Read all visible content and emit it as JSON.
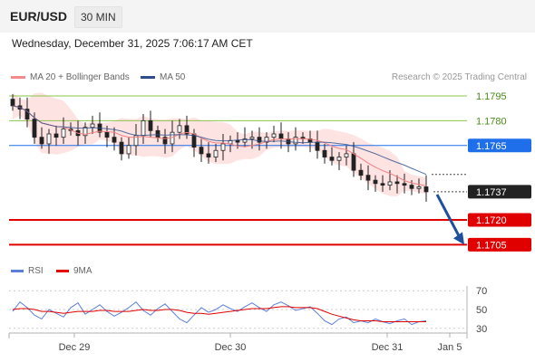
{
  "header": {
    "symbol": "EUR/USD",
    "interval": "30 MIN"
  },
  "timestamp": "Wednesday, December 31, 2025 7:06:17 AM CET",
  "credit": "Research © 2025 Trading Central",
  "legend": {
    "ma20": {
      "label": "MA 20 + Bollinger Bands",
      "color": "#f48a8a"
    },
    "ma50": {
      "label": "MA 50",
      "color": "#2c4f8a"
    },
    "rsi": {
      "label": "RSI",
      "color": "#5b7fd9"
    },
    "rsi9": {
      "label": "9MA",
      "color": "#e00000"
    }
  },
  "chart_data": [
    {
      "type": "candlestick",
      "title": "EUR/USD 30 MIN",
      "ylim": [
        1.1697,
        1.1801
      ],
      "x_ticks": [
        "Dec 29",
        "Dec 30",
        "Dec 31",
        "Jan 5"
      ],
      "close_series": [
        1.1789,
        1.1787,
        1.1781,
        1.177,
        1.1766,
        1.1772,
        1.177,
        1.1775,
        1.1774,
        1.1771,
        1.1776,
        1.1778,
        1.1773,
        1.177,
        1.1767,
        1.176,
        1.1765,
        1.1771,
        1.178,
        1.1774,
        1.177,
        1.1766,
        1.1773,
        1.1777,
        1.1772,
        1.1764,
        1.176,
        1.1758,
        1.1762,
        1.1766,
        1.1768,
        1.1767,
        1.1769,
        1.177,
        1.1767,
        1.177,
        1.1772,
        1.1769,
        1.1766,
        1.177,
        1.1769,
        1.1767,
        1.1762,
        1.1758,
        1.1756,
        1.1758,
        1.176,
        1.175,
        1.1747,
        1.1744,
        1.1742,
        1.1741,
        1.1743,
        1.1742,
        1.1741,
        1.1739,
        1.174,
        1.1737
      ],
      "horizontal_levels": [
        {
          "value": "1.1795",
          "color": "#8bc34a",
          "style": "line"
        },
        {
          "value": "1.1780",
          "color": "#8bc34a",
          "style": "line"
        },
        {
          "value": "1.1765",
          "color": "#1f6feb",
          "style": "badge"
        },
        {
          "value": "1.1737",
          "color": "#222222",
          "style": "badge"
        },
        {
          "value": "1.1720",
          "color": "#e00000",
          "style": "badge"
        },
        {
          "value": "1.1705",
          "color": "#e00000",
          "style": "badge"
        }
      ],
      "forecast": {
        "from": 1.1737,
        "to": 1.1705,
        "direction": "down",
        "color": "#1f4e9c"
      },
      "ma50_last": 1.1755,
      "ma20_last": 1.1742
    },
    {
      "type": "line",
      "title": "RSI",
      "ylim": [
        25,
        75
      ],
      "y_ticks": [
        "70",
        "50",
        "30"
      ],
      "rsi_series": [
        48,
        58,
        52,
        44,
        40,
        50,
        46,
        42,
        52,
        57,
        45,
        50,
        55,
        48,
        43,
        47,
        52,
        58,
        49,
        44,
        51,
        56,
        48,
        40,
        36,
        44,
        52,
        47,
        50,
        55,
        51,
        48,
        53,
        57,
        52,
        48,
        55,
        58,
        54,
        49,
        51,
        53,
        46,
        38,
        34,
        40,
        42,
        36,
        38,
        36,
        40,
        37,
        35,
        38,
        40,
        34,
        37,
        38
      ],
      "ma9_series": [
        50,
        51,
        51,
        50,
        48,
        48,
        47,
        46,
        47,
        48,
        48,
        48,
        49,
        49,
        48,
        48,
        48,
        49,
        50,
        49,
        49,
        50,
        50,
        49,
        47,
        46,
        46,
        45,
        46,
        47,
        48,
        49,
        50,
        51,
        51,
        51,
        52,
        53,
        53,
        52,
        52,
        52,
        51,
        48,
        45,
        43,
        41,
        39,
        38,
        38,
        38,
        37,
        37,
        37,
        37,
        37,
        37,
        37
      ]
    }
  ]
}
